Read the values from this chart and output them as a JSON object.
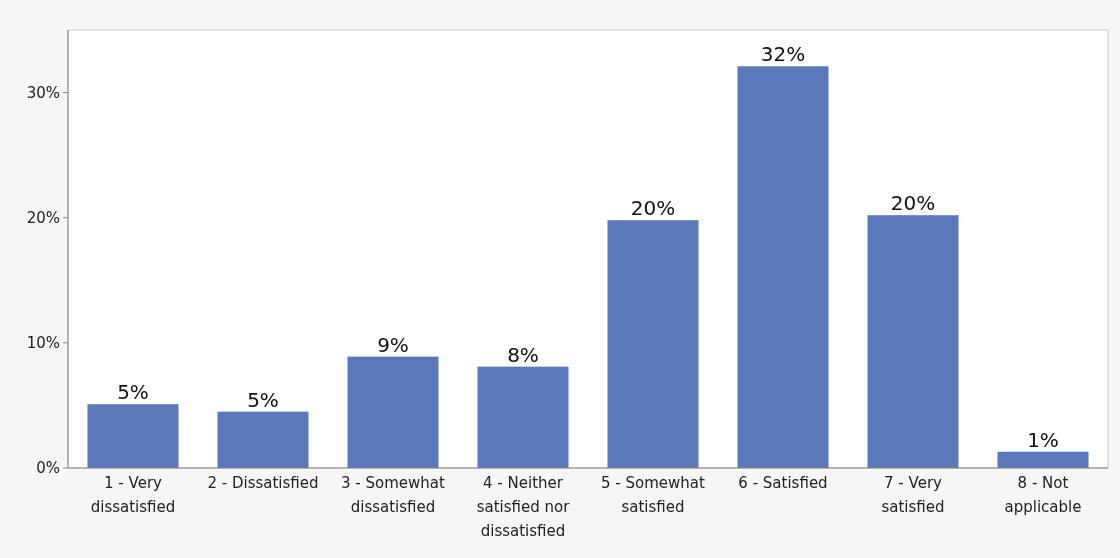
{
  "chart_data": {
    "type": "bar",
    "categories": [
      "1 - Very dissatisfied",
      "2 - Dissatisfied",
      "3 - Somewhat dissatisfied",
      "4 - Neither satisfied nor dissatisfied",
      "5 - Somewhat satisfied",
      "6 - Satisfied",
      "7 - Very satisfied",
      "8 - Not applicable"
    ],
    "values": [
      5.1,
      4.5,
      8.9,
      8.1,
      19.8,
      32.1,
      20.2,
      1.3
    ],
    "value_labels": [
      "5%",
      "5%",
      "9%",
      "8%",
      "20%",
      "32%",
      "20%",
      "1%"
    ],
    "color": "#5b78bb",
    "ylim": [
      0,
      35
    ],
    "yticks": [
      {
        "value": 0,
        "label": "0%"
      },
      {
        "value": 10,
        "label": "10%"
      },
      {
        "value": 20,
        "label": "20%"
      },
      {
        "value": 30,
        "label": "30%"
      }
    ],
    "grid": false
  }
}
